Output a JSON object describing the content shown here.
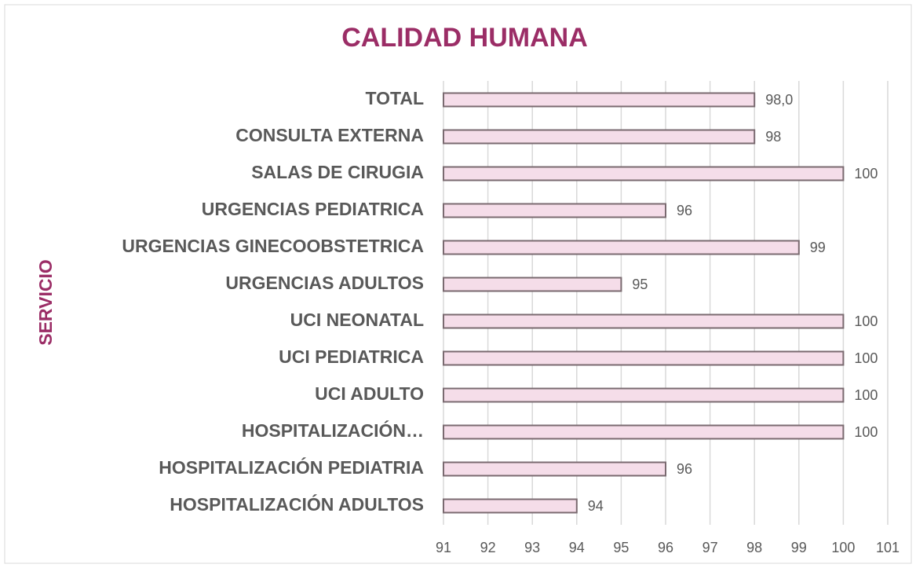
{
  "chart_data": {
    "type": "hbar",
    "title": "CALIDAD HUMANA",
    "y_label": "SERVICIO",
    "categories": [
      "TOTAL",
      "CONSULTA EXTERNA",
      "SALAS DE CIRUGIA",
      "URGENCIAS PEDIATRICA",
      "URGENCIAS GINECOOBSTETRICA",
      "URGENCIAS ADULTOS",
      "UCI NEONATAL",
      "UCI PEDIATRICA",
      "UCI ADULTO",
      "HOSPITALIZACIÓN…",
      "HOSPITALIZACIÓN PEDIATRIA",
      "HOSPITALIZACIÓN ADULTOS"
    ],
    "values": [
      98.0,
      98,
      100,
      96,
      99,
      95,
      100,
      100,
      100,
      100,
      96,
      94
    ],
    "value_labels": [
      "98,0",
      "98",
      "100",
      "96",
      "99",
      "95",
      "100",
      "100",
      "100",
      "100",
      "96",
      "94"
    ],
    "color": "#f5dde9",
    "edge_color": "#7a6a70",
    "xlim": [
      91,
      101
    ],
    "xticks": [
      91,
      92,
      93,
      94,
      95,
      96,
      97,
      98,
      99,
      100,
      101
    ],
    "grid": true
  }
}
